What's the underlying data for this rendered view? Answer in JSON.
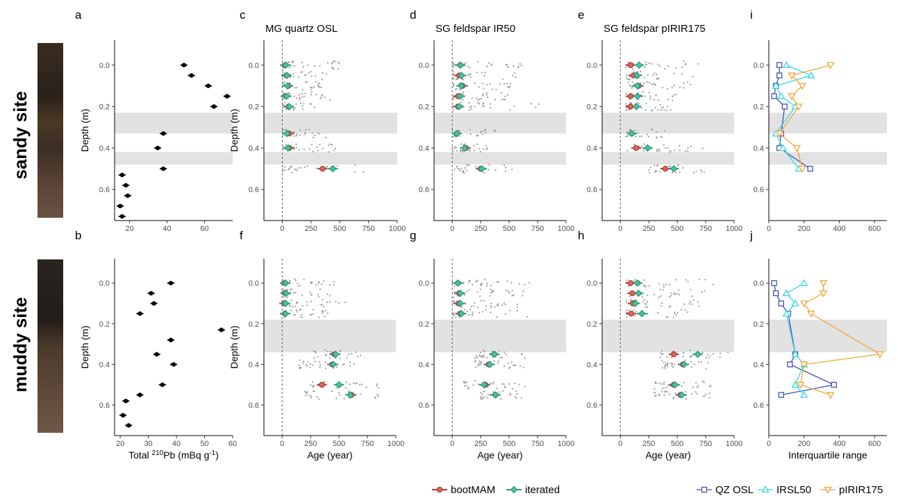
{
  "row_labels": [
    "sandy site",
    "muddy site"
  ],
  "panel_letters": {
    "a": "a",
    "b": "b",
    "c": "c",
    "d": "d",
    "e": "e",
    "f": "f",
    "g": "g",
    "h": "h",
    "i": "i",
    "j": "j"
  },
  "column_titles": {
    "c": "MG quartz OSL",
    "d": "SG feldspar IR50",
    "e": "SG feldspar pIRIR175"
  },
  "y_label": "Depth (m)",
  "x_label_pb_prefix": "Total ",
  "x_label_pb_sup": "210",
  "x_label_pb_unit": "Pb (mBq g",
  "x_label_pb_sup2": "-1",
  "x_label_pb_close": ")",
  "x_label_age": "Age (year)",
  "x_label_iqr": "Interquartile range",
  "legend_age": [
    {
      "label": "bootMAM",
      "color": "#b2332e",
      "marker": "circle"
    },
    {
      "label": "iterated",
      "color": "#1d9a78",
      "marker": "diamond"
    }
  ],
  "legend_iqr": [
    {
      "label": "QZ OSL",
      "color": "#3f51b5",
      "marker": "square"
    },
    {
      "label": "IRSL50",
      "color": "#30d8e8",
      "marker": "triangle-up"
    },
    {
      "label": "pIRIR175",
      "color": "#f2a42f",
      "marker": "triangle-down"
    }
  ],
  "colors": {
    "gap_band": "#e2e2e2",
    "points": "#9a9a9a",
    "pb": "#000000"
  },
  "chart_data": [
    {
      "panel": "a",
      "type": "scatter",
      "xlabel": "Total 210Pb (mBq g-1)",
      "ylabel": "Depth (m)",
      "xlim": [
        12,
        75
      ],
      "ylim": [
        0.75,
        -0.12
      ],
      "xticks": [
        20,
        40,
        60
      ],
      "yticks": [
        0.0,
        0.2,
        0.4,
        0.6
      ],
      "gaps": [
        [
          0.23,
          0.33
        ],
        [
          0.42,
          0.48
        ]
      ],
      "points": [
        [
          49,
          0.0
        ],
        [
          53,
          0.05
        ],
        [
          62,
          0.1
        ],
        [
          72,
          0.15
        ],
        [
          65,
          0.2
        ],
        [
          38,
          0.33
        ],
        [
          35,
          0.4
        ],
        [
          38,
          0.5
        ],
        [
          16,
          0.53
        ],
        [
          18,
          0.58
        ],
        [
          19,
          0.63
        ],
        [
          15,
          0.68
        ],
        [
          16,
          0.73
        ]
      ]
    },
    {
      "panel": "b",
      "type": "scatter",
      "xlabel": "Total 210Pb (mBq g-1)",
      "ylabel": "Depth (m)",
      "xlim": [
        18,
        60
      ],
      "ylim": [
        0.75,
        -0.12
      ],
      "xticks": [
        20,
        30,
        40,
        50,
        60
      ],
      "yticks": [
        0.0,
        0.2,
        0.4,
        0.6
      ],
      "gaps": [],
      "points": [
        [
          38,
          0.0
        ],
        [
          31,
          0.05
        ],
        [
          32,
          0.1
        ],
        [
          27,
          0.15
        ],
        [
          56,
          0.23
        ],
        [
          38,
          0.28
        ],
        [
          33,
          0.35
        ],
        [
          39,
          0.4
        ],
        [
          35,
          0.5
        ],
        [
          27,
          0.55
        ],
        [
          22,
          0.58
        ],
        [
          21,
          0.65
        ],
        [
          23,
          0.7
        ]
      ]
    },
    {
      "panel": "c",
      "type": "scatter",
      "title": "MG quartz OSL",
      "xlabel": "",
      "xlim": [
        -160,
        1000
      ],
      "ylim": [
        0.75,
        -0.12
      ],
      "xticks": [
        0,
        250,
        500,
        750,
        1000
      ],
      "yticks": [
        0.0,
        0.2,
        0.4,
        0.6
      ],
      "gaps": [
        [
          0.23,
          0.33
        ],
        [
          0.42,
          0.48
        ]
      ],
      "groups": [
        {
          "depth": 0.0,
          "bootMAM": 25,
          "iterated": 30,
          "spread": [
            0,
            500
          ]
        },
        {
          "depth": 0.05,
          "bootMAM": 35,
          "iterated": 40,
          "spread": [
            0,
            420
          ]
        },
        {
          "depth": 0.1,
          "bootMAM": 50,
          "iterated": 45,
          "spread": [
            0,
            380
          ]
        },
        {
          "depth": 0.15,
          "bootMAM": 30,
          "iterated": 35,
          "spread": [
            0,
            420
          ]
        },
        {
          "depth": 0.2,
          "bootMAM": 55,
          "iterated": 60,
          "spread": [
            0,
            300
          ]
        },
        {
          "depth": 0.33,
          "bootMAM": 60,
          "iterated": 40,
          "spread": [
            0,
            420
          ]
        },
        {
          "depth": 0.4,
          "bootMAM": 60,
          "iterated": 50,
          "spread": [
            0,
            500
          ]
        },
        {
          "depth": 0.5,
          "bootMAM": 350,
          "iterated": 440,
          "spread": [
            0,
            720
          ]
        }
      ]
    },
    {
      "panel": "d",
      "type": "scatter",
      "title": "SG feldspar IR50",
      "xlabel": "",
      "xlim": [
        -160,
        1000
      ],
      "ylim": [
        0.75,
        -0.12
      ],
      "xticks": [
        0,
        250,
        500,
        750,
        1000
      ],
      "yticks": [
        0.0,
        0.2,
        0.4,
        0.6
      ],
      "gaps": [
        [
          0.23,
          0.33
        ],
        [
          0.42,
          0.48
        ]
      ],
      "groups": [
        {
          "depth": 0.0,
          "bootMAM": 70,
          "iterated": 70,
          "spread": [
            0,
            620
          ]
        },
        {
          "depth": 0.05,
          "bootMAM": 60,
          "iterated": 80,
          "spread": [
            0,
            580
          ]
        },
        {
          "depth": 0.1,
          "bootMAM": 90,
          "iterated": 80,
          "spread": [
            0,
            550
          ]
        },
        {
          "depth": 0.15,
          "bootMAM": 50,
          "iterated": 70,
          "spread": [
            0,
            500
          ]
        },
        {
          "depth": 0.2,
          "bootMAM": 50,
          "iterated": 60,
          "spread": [
            0,
            780
          ]
        },
        {
          "depth": 0.33,
          "bootMAM": 40,
          "iterated": 40,
          "spread": [
            0,
            400
          ]
        },
        {
          "depth": 0.4,
          "bootMAM": 120,
          "iterated": 110,
          "spread": [
            0,
            350
          ]
        },
        {
          "depth": 0.5,
          "bootMAM": 250,
          "iterated": 260,
          "spread": [
            0,
            550
          ]
        }
      ]
    },
    {
      "panel": "e",
      "type": "scatter",
      "title": "SG feldspar pIRIR175",
      "xlabel": "",
      "xlim": [
        -160,
        1000
      ],
      "ylim": [
        0.75,
        -0.12
      ],
      "xticks": [
        0,
        250,
        500,
        750,
        1000
      ],
      "yticks": [
        0.0,
        0.2,
        0.4,
        0.6
      ],
      "gaps": [
        [
          0.23,
          0.33
        ],
        [
          0.42,
          0.48
        ]
      ],
      "groups": [
        {
          "depth": 0.0,
          "bootMAM": 90,
          "iterated": 165,
          "spread": [
            50,
            700
          ]
        },
        {
          "depth": 0.05,
          "bootMAM": 115,
          "iterated": 145,
          "spread": [
            50,
            650
          ]
        },
        {
          "depth": 0.1,
          "bootMAM": 160,
          "iterated": 150,
          "spread": [
            50,
            650
          ]
        },
        {
          "depth": 0.15,
          "bootMAM": 90,
          "iterated": 150,
          "spread": [
            50,
            500
          ]
        },
        {
          "depth": 0.2,
          "bootMAM": 90,
          "iterated": 140,
          "spread": [
            50,
            450
          ]
        },
        {
          "depth": 0.33,
          "bootMAM": 100,
          "iterated": 100,
          "spread": [
            50,
            420
          ]
        },
        {
          "depth": 0.4,
          "bootMAM": 140,
          "iterated": 240,
          "spread": [
            50,
            750
          ]
        },
        {
          "depth": 0.5,
          "bootMAM": 395,
          "iterated": 470,
          "spread": [
            250,
            780
          ]
        }
      ]
    },
    {
      "panel": "f",
      "type": "scatter",
      "xlabel": "Age (year)",
      "xlim": [
        -160,
        1000
      ],
      "ylim": [
        0.75,
        -0.12
      ],
      "xticks": [
        0,
        250,
        500,
        750,
        1000
      ],
      "yticks": [
        0.0,
        0.2,
        0.4,
        0.6
      ],
      "gaps": [
        [
          0.18,
          0.34
        ]
      ],
      "groups": [
        {
          "depth": 0.0,
          "bootMAM": 25,
          "iterated": 30,
          "spread": [
            0,
            500
          ]
        },
        {
          "depth": 0.05,
          "bootMAM": 30,
          "iterated": 35,
          "spread": [
            0,
            420
          ]
        },
        {
          "depth": 0.1,
          "bootMAM": 20,
          "iterated": 30,
          "spread": [
            0,
            650
          ]
        },
        {
          "depth": 0.15,
          "bootMAM": 25,
          "iterated": 30,
          "spread": [
            0,
            400
          ]
        },
        {
          "depth": 0.35,
          "bootMAM": 460,
          "iterated": 470,
          "spread": [
            280,
            700
          ]
        },
        {
          "depth": 0.4,
          "bootMAM": 440,
          "iterated": 450,
          "spread": [
            150,
            650
          ]
        },
        {
          "depth": 0.5,
          "bootMAM": 350,
          "iterated": 500,
          "spread": [
            250,
            900
          ]
        },
        {
          "depth": 0.55,
          "bootMAM": 610,
          "iterated": 600,
          "spread": [
            200,
            880
          ]
        }
      ]
    },
    {
      "panel": "g",
      "type": "scatter",
      "xlabel": "Age (year)",
      "xlim": [
        -160,
        1000
      ],
      "ylim": [
        0.75,
        -0.12
      ],
      "xticks": [
        0,
        250,
        500,
        750,
        1000
      ],
      "yticks": [
        0.0,
        0.2,
        0.4,
        0.6
      ],
      "gaps": [
        [
          0.18,
          0.34
        ]
      ],
      "groups": [
        {
          "depth": 0.0,
          "bootMAM": 50,
          "iterated": 50,
          "spread": [
            0,
            700
          ]
        },
        {
          "depth": 0.05,
          "bootMAM": 60,
          "iterated": 70,
          "spread": [
            0,
            650
          ]
        },
        {
          "depth": 0.1,
          "bootMAM": 55,
          "iterated": 70,
          "spread": [
            0,
            600
          ]
        },
        {
          "depth": 0.15,
          "bootMAM": 70,
          "iterated": 80,
          "spread": [
            0,
            680
          ]
        },
        {
          "depth": 0.35,
          "bootMAM": 370,
          "iterated": 370,
          "spread": [
            200,
            650
          ]
        },
        {
          "depth": 0.4,
          "bootMAM": 320,
          "iterated": 330,
          "spread": [
            200,
            650
          ]
        },
        {
          "depth": 0.5,
          "bootMAM": 290,
          "iterated": 280,
          "spread": [
            100,
            780
          ]
        },
        {
          "depth": 0.55,
          "bootMAM": 380,
          "iterated": 380,
          "spread": [
            250,
            650
          ]
        }
      ]
    },
    {
      "panel": "h",
      "type": "scatter",
      "xlabel": "Age (year)",
      "xlim": [
        -160,
        1000
      ],
      "ylim": [
        0.75,
        -0.12
      ],
      "xticks": [
        0,
        250,
        500,
        750,
        1000
      ],
      "yticks": [
        0.0,
        0.2,
        0.4,
        0.6
      ],
      "gaps": [
        [
          0.18,
          0.34
        ]
      ],
      "groups": [
        {
          "depth": 0.0,
          "bootMAM": 90,
          "iterated": 150,
          "spread": [
            50,
            850
          ]
        },
        {
          "depth": 0.05,
          "bootMAM": 105,
          "iterated": 160,
          "spread": [
            50,
            800
          ]
        },
        {
          "depth": 0.1,
          "bootMAM": 110,
          "iterated": 130,
          "spread": [
            50,
            750
          ]
        },
        {
          "depth": 0.15,
          "bootMAM": 95,
          "iterated": 190,
          "spread": [
            50,
            600
          ]
        },
        {
          "depth": 0.35,
          "bootMAM": 470,
          "iterated": 680,
          "spread": [
            350,
            950
          ]
        },
        {
          "depth": 0.4,
          "bootMAM": 550,
          "iterated": 560,
          "spread": [
            350,
            800
          ]
        },
        {
          "depth": 0.5,
          "bootMAM": 470,
          "iterated": 480,
          "spread": [
            300,
            800
          ]
        },
        {
          "depth": 0.55,
          "bootMAM": 530,
          "iterated": 540,
          "spread": [
            300,
            820
          ]
        }
      ]
    },
    {
      "panel": "i",
      "type": "line",
      "xlabel": "",
      "xlim": [
        0,
        670
      ],
      "ylim": [
        0.75,
        -0.12
      ],
      "xticks": [
        0,
        200,
        400,
        600
      ],
      "yticks": [
        0.0,
        0.2,
        0.4,
        0.6
      ],
      "gaps": [
        [
          0.23,
          0.33
        ],
        [
          0.42,
          0.48
        ]
      ],
      "depths": [
        0.0,
        0.05,
        0.1,
        0.15,
        0.2,
        0.33,
        0.4,
        0.5
      ],
      "series": [
        {
          "name": "QZ OSL",
          "values": [
            60,
            60,
            40,
            30,
            90,
            70,
            60,
            235
          ]
        },
        {
          "name": "IRSL50",
          "values": [
            100,
            240,
            40,
            70,
            150,
            40,
            80,
            170
          ]
        },
        {
          "name": "pIRIR175",
          "values": [
            350,
            130,
            190,
            130,
            170,
            60,
            160,
            190
          ]
        }
      ]
    },
    {
      "panel": "j",
      "type": "line",
      "xlabel": "Interquartile range",
      "xlim": [
        0,
        670
      ],
      "ylim": [
        0.75,
        -0.12
      ],
      "xticks": [
        0,
        200,
        400,
        600
      ],
      "yticks": [
        0.0,
        0.2,
        0.4,
        0.6
      ],
      "gaps": [
        [
          0.18,
          0.34
        ]
      ],
      "depths": [
        0.0,
        0.05,
        0.1,
        0.15,
        0.35,
        0.4,
        0.5,
        0.55
      ],
      "series": [
        {
          "name": "QZ OSL",
          "values": [
            30,
            40,
            70,
            110,
            150,
            120,
            370,
            70
          ]
        },
        {
          "name": "IRSL50",
          "values": [
            200,
            100,
            150,
            100,
            150,
            200,
            150,
            200
          ]
        },
        {
          "name": "pIRIR175",
          "values": [
            310,
            310,
            200,
            240,
            630,
            200,
            180,
            350
          ]
        }
      ]
    }
  ]
}
